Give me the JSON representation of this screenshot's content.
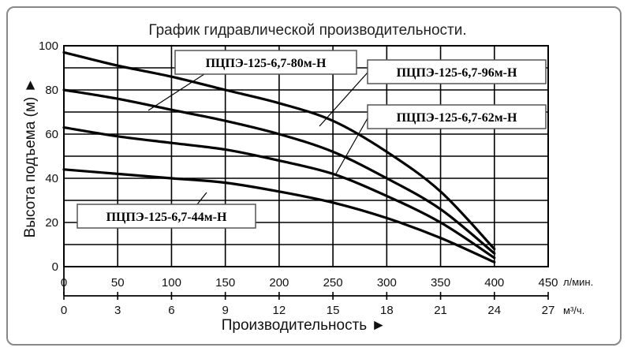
{
  "chart_data": {
    "type": "line",
    "title": "График гидравлической производительности.",
    "ylabel": "Высота подъема (м) ►",
    "xlabel": "Производительность ►",
    "x_unit_primary": "л/мин.",
    "x_unit_secondary": "м³/ч.",
    "xlim": [
      0,
      450
    ],
    "ylim": [
      0,
      100
    ],
    "x_ticks": [
      "0",
      "50",
      "100",
      "150",
      "200",
      "250",
      "300",
      "350",
      "400",
      "450"
    ],
    "x2_ticks": [
      "0",
      "3",
      "6",
      "9",
      "12",
      "15",
      "18",
      "21",
      "24",
      "27"
    ],
    "y_ticks": [
      "0",
      "20",
      "40",
      "60",
      "80",
      "100"
    ],
    "grid": true,
    "series": [
      {
        "name": "ПЦПЭ-125-6,7-96м-Н",
        "x": [
          0,
          50,
          100,
          150,
          200,
          250,
          300,
          350,
          400
        ],
        "y": [
          97,
          91,
          86,
          80,
          74,
          66,
          52,
          34,
          8
        ]
      },
      {
        "name": "ПЦПЭ-125-6,7-80м-Н",
        "x": [
          0,
          50,
          100,
          150,
          200,
          250,
          300,
          350,
          400
        ],
        "y": [
          80,
          76,
          71,
          66,
          60,
          52,
          40,
          26,
          6
        ]
      },
      {
        "name": "ПЦПЭ-125-6,7-62м-Н",
        "x": [
          0,
          50,
          100,
          150,
          200,
          250,
          300,
          350,
          400
        ],
        "y": [
          63,
          59,
          56,
          53,
          48,
          42,
          32,
          20,
          4
        ]
      },
      {
        "name": "ПЦПЭ-125-6,7-44м-Н",
        "x": [
          0,
          50,
          100,
          150,
          200,
          250,
          300,
          350,
          400
        ],
        "y": [
          44,
          42,
          40,
          38,
          34,
          29,
          22,
          13,
          2
        ]
      }
    ]
  }
}
